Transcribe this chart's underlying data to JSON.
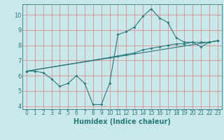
{
  "xlabel": "Humidex (Indice chaleur)",
  "xlim": [
    -0.5,
    23.5
  ],
  "ylim": [
    3.8,
    10.7
  ],
  "yticks": [
    4,
    5,
    6,
    7,
    8,
    9,
    10
  ],
  "xticks": [
    0,
    1,
    2,
    3,
    4,
    5,
    6,
    7,
    8,
    9,
    10,
    11,
    12,
    13,
    14,
    15,
    16,
    17,
    18,
    19,
    20,
    21,
    22,
    23
  ],
  "background_color": "#c8e8ec",
  "plot_bg_color": "#c8e8ec",
  "grid_color": "#e08080",
  "line_color": "#2a7a7a",
  "line1_x": [
    0,
    1,
    2,
    3,
    4,
    5,
    6,
    7,
    8,
    9,
    10,
    11,
    12,
    13,
    14,
    15,
    16,
    17,
    18,
    19,
    20,
    21,
    22,
    23
  ],
  "line1_y": [
    6.3,
    6.3,
    6.2,
    5.8,
    5.3,
    5.5,
    6.0,
    5.5,
    4.1,
    4.1,
    5.5,
    8.7,
    8.9,
    9.2,
    9.9,
    10.4,
    9.8,
    9.5,
    8.5,
    8.2,
    8.2,
    7.9,
    8.2,
    8.3
  ],
  "line2_x": [
    0,
    10,
    11,
    12,
    13,
    14,
    15,
    16,
    17,
    18,
    19,
    20,
    21,
    22,
    23
  ],
  "line2_y": [
    6.3,
    7.2,
    7.3,
    7.4,
    7.5,
    7.7,
    7.8,
    7.9,
    8.0,
    8.1,
    8.1,
    8.2,
    8.2,
    8.2,
    8.3
  ],
  "line3_x": [
    0,
    23
  ],
  "line3_y": [
    6.3,
    8.3
  ],
  "marker_size": 2.0,
  "line_width": 0.8,
  "tick_fontsize": 5.5,
  "xlabel_fontsize": 7.0
}
